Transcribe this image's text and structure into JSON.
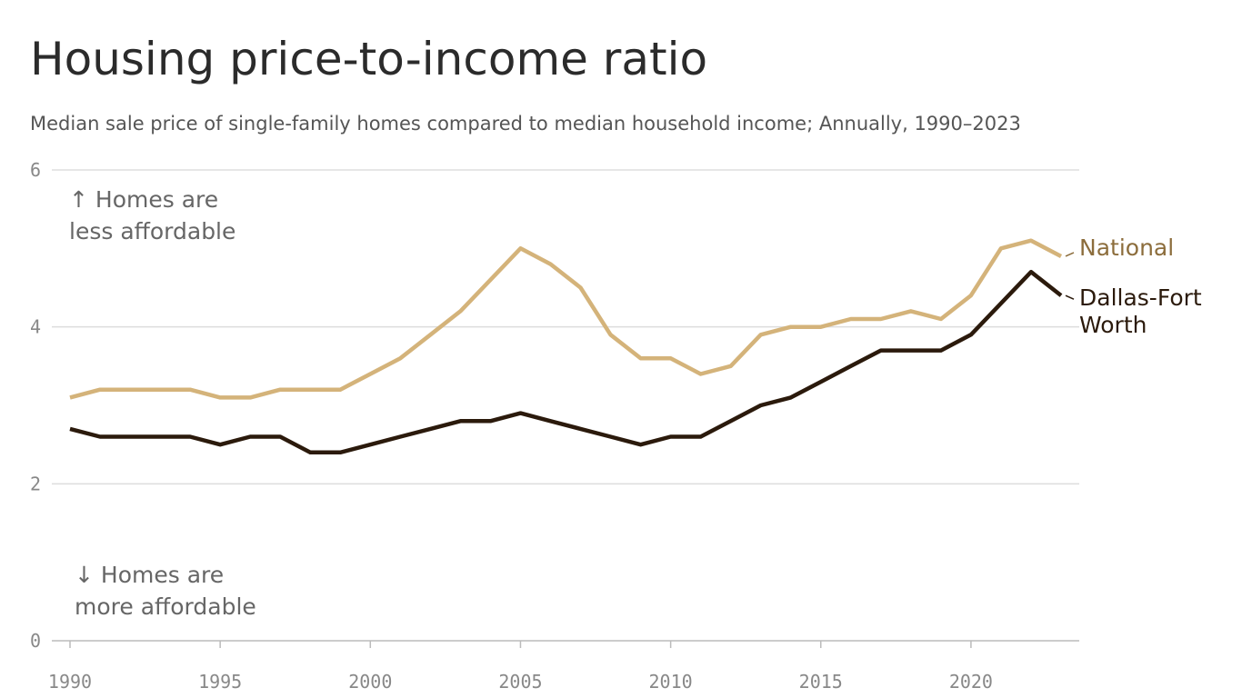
{
  "chart_data": {
    "type": "line",
    "title": "Housing price-to-income ratio",
    "subtitle": "Median sale price of single-family homes compared to median household income; Annually, 1990–2023",
    "x": [
      1990,
      1991,
      1992,
      1993,
      1994,
      1995,
      1996,
      1997,
      1998,
      1999,
      2000,
      2001,
      2002,
      2003,
      2004,
      2005,
      2006,
      2007,
      2008,
      2009,
      2010,
      2011,
      2012,
      2013,
      2014,
      2015,
      2016,
      2017,
      2018,
      2019,
      2020,
      2021,
      2022,
      2023
    ],
    "series": [
      {
        "name": "National",
        "color": "#d4b37a",
        "label_color": "#8c6d3c",
        "values": [
          3.1,
          3.2,
          3.2,
          3.2,
          3.2,
          3.1,
          3.1,
          3.2,
          3.2,
          3.2,
          3.4,
          3.6,
          3.9,
          4.2,
          4.6,
          5.0,
          4.8,
          4.5,
          3.9,
          3.6,
          3.6,
          3.4,
          3.5,
          3.9,
          4.0,
          4.0,
          4.1,
          4.1,
          4.2,
          4.1,
          4.4,
          5.0,
          5.1,
          4.9
        ]
      },
      {
        "name": "Dallas-Fort Worth",
        "color": "#2b1a0c",
        "label_color": "#2b1a0c",
        "values": [
          2.7,
          2.6,
          2.6,
          2.6,
          2.6,
          2.5,
          2.6,
          2.6,
          2.4,
          2.4,
          2.5,
          2.6,
          2.7,
          2.8,
          2.8,
          2.9,
          2.8,
          2.7,
          2.6,
          2.5,
          2.6,
          2.6,
          2.8,
          3.0,
          3.1,
          3.3,
          3.5,
          3.7,
          3.7,
          3.7,
          3.9,
          4.3,
          4.7,
          4.4
        ]
      }
    ],
    "xlim": [
      1990,
      2023
    ],
    "xticks": [
      1990,
      1995,
      2000,
      2005,
      2010,
      2015,
      2020
    ],
    "ylim": [
      0,
      6
    ],
    "yticks": [
      0,
      2,
      4,
      6
    ],
    "grid": true,
    "annotations": [
      {
        "lines": [
          "↑ Homes are",
          "less affordable"
        ]
      },
      {
        "lines": [
          "↓ Homes are",
          "more affordable"
        ]
      }
    ]
  }
}
